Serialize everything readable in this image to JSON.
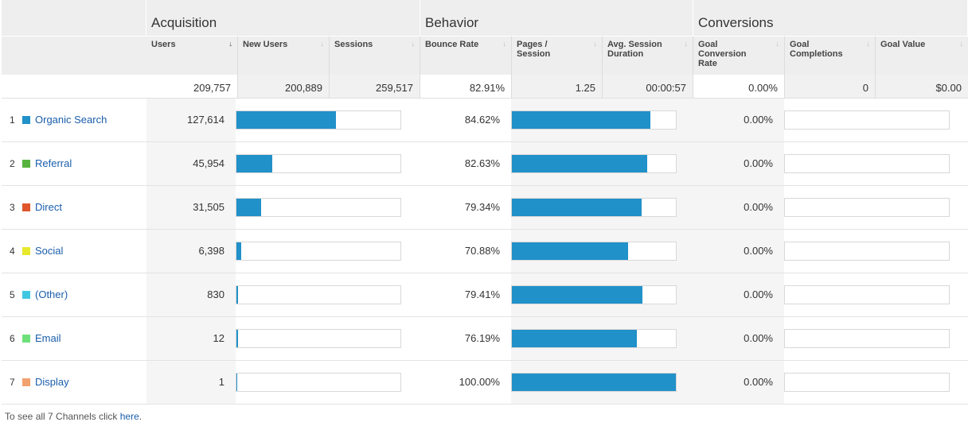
{
  "groups": {
    "acquisition": "Acquisition",
    "behavior": "Behavior",
    "conversions": "Conversions"
  },
  "columns": {
    "users": "Users",
    "new_users": "New Users",
    "sessions": "Sessions",
    "bounce_rate": "Bounce Rate",
    "pages_session": "Pages / Session",
    "avg_session_duration": "Avg. Session Duration",
    "goal_conversion_rate": "Goal Conversion Rate",
    "goal_completions": "Goal Completions",
    "goal_value": "Goal Value",
    "sort_active_icon": "sort-desc-icon",
    "sort_inactive_icon": "sort-icon"
  },
  "totals": {
    "users": "209,757",
    "new_users": "200,889",
    "sessions": "259,517",
    "bounce_rate": "82.91%",
    "pages_session": "1.25",
    "avg_session_duration": "00:00:57",
    "goal_conversion_rate": "0.00%",
    "goal_completions": "0",
    "goal_value": "$0.00"
  },
  "rows": [
    {
      "num": "1",
      "channel": "Organic Search",
      "color": "#2191c9",
      "users": "127,614",
      "users_share": 0.608,
      "bounce_rate": "84.62%",
      "bounce_share": 0.846,
      "conv_rate": "0.00%",
      "conv_share": 0
    },
    {
      "num": "2",
      "channel": "Referral",
      "color": "#57b33e",
      "users": "45,954",
      "users_share": 0.219,
      "bounce_rate": "82.63%",
      "bounce_share": 0.826,
      "conv_rate": "0.00%",
      "conv_share": 0
    },
    {
      "num": "3",
      "channel": "Direct",
      "color": "#e0552b",
      "users": "31,505",
      "users_share": 0.15,
      "bounce_rate": "79.34%",
      "bounce_share": 0.793,
      "conv_rate": "0.00%",
      "conv_share": 0
    },
    {
      "num": "4",
      "channel": "Social",
      "color": "#e8e82c",
      "users": "6,398",
      "users_share": 0.03,
      "bounce_rate": "70.88%",
      "bounce_share": 0.709,
      "conv_rate": "0.00%",
      "conv_share": 0
    },
    {
      "num": "5",
      "channel": "(Other)",
      "color": "#40c7e0",
      "users": "830",
      "users_share": 0.004,
      "bounce_rate": "79.41%",
      "bounce_share": 0.794,
      "conv_rate": "0.00%",
      "conv_share": 0
    },
    {
      "num": "6",
      "channel": "Email",
      "color": "#6ee07a",
      "users": "12",
      "users_share": 0.0001,
      "bounce_rate": "76.19%",
      "bounce_share": 0.762,
      "conv_rate": "0.00%",
      "conv_share": 0
    },
    {
      "num": "7",
      "channel": "Display",
      "color": "#f2a170",
      "users": "1",
      "users_share": 0.0,
      "bounce_rate": "100.00%",
      "bounce_share": 1.0,
      "conv_rate": "0.00%",
      "conv_share": 0
    }
  ],
  "footer": {
    "text": "To see all 7 Channels click ",
    "link": "here",
    "suffix": "."
  }
}
